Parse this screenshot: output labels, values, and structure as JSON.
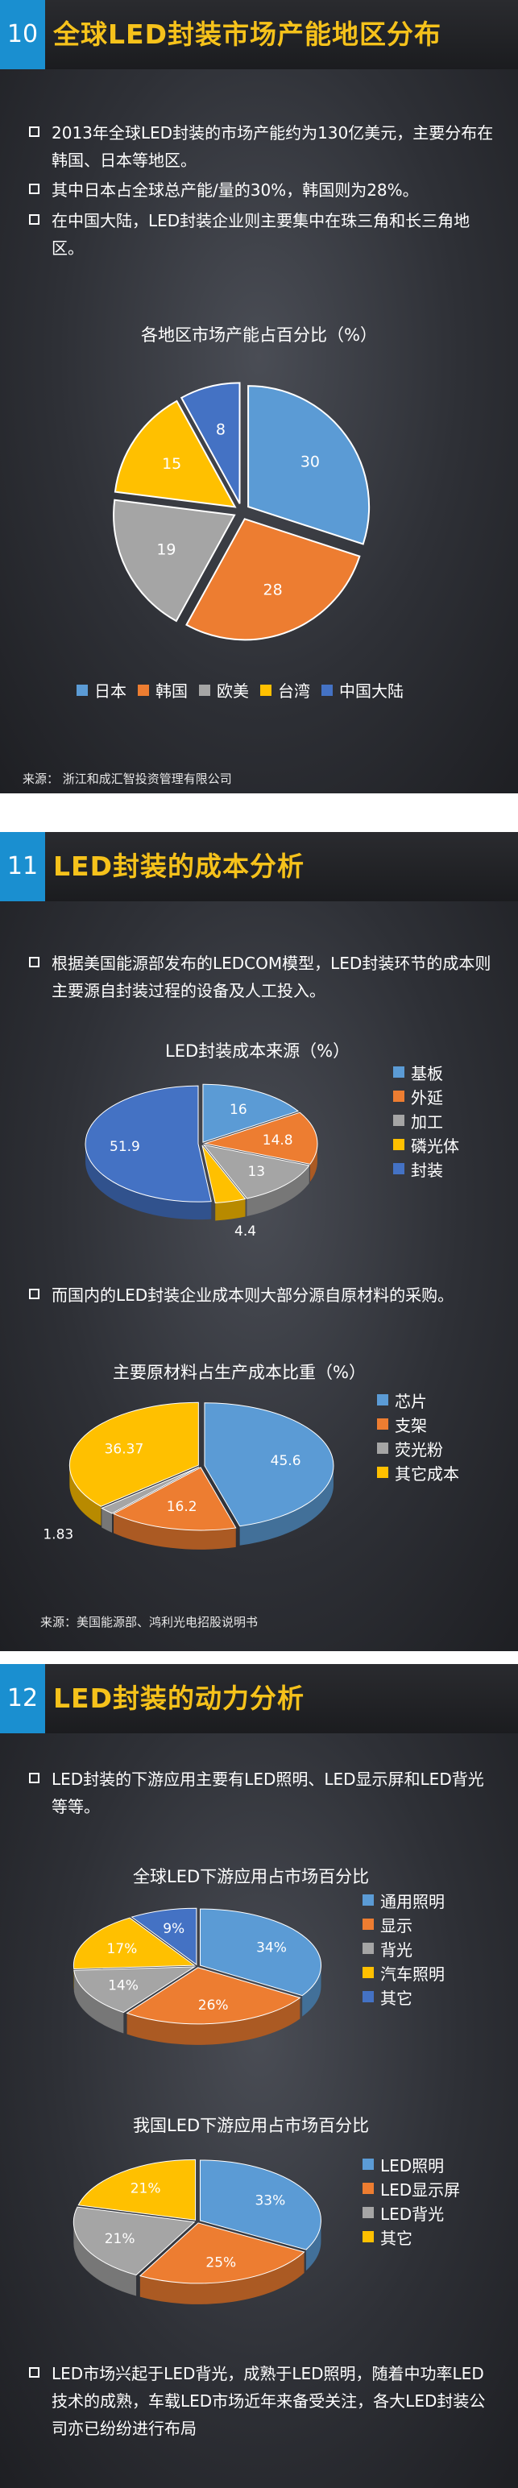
{
  "section10": {
    "number": "10",
    "title": "全球LED封装市场产能地区分布",
    "bullets": [
      "2013年全球LED封装的市场产能约为130亿美元，主要分布在韩国、日本等地区。",
      "其中日本占全球总产能/量的30%，韩国则为28%。",
      "在中国大陆，LED封装企业则主要集中在珠三角和长三角地区。"
    ],
    "source": "来源：  浙江和成汇智投资管理有限公司"
  },
  "section11": {
    "number": "11",
    "title": "LED封装的成本分析",
    "bullets": [
      "根据美国能源部发布的LEDCOM模型，LED封装环节的成本则主要源自封装过程的设备及人工投入。"
    ],
    "bullets2": [
      "而国内的LED封装企业成本则大部分源自原材料的采购。"
    ],
    "source": "来源：美国能源部、鸿利光电招股说明书"
  },
  "section12": {
    "number": "12",
    "title": "LED封装的动力分析",
    "bullets": [
      "LED封装的下游应用主要有LED照明、LED显示屏和LED背光等等。"
    ],
    "bullets2": [
      "LED市场兴起于LED背光，成熟于LED照明，随着中功率LED技术的成熟，车载LED市场近年来备受关注，各大LED封装公司亦已纷纷进行布局"
    ]
  },
  "chart_data": [
    {
      "type": "pie",
      "title": "各地区市场产能占百分比（%）",
      "categories": [
        "日本",
        "韩国",
        "欧美",
        "台湾",
        "中国大陆"
      ],
      "values": [
        30,
        28,
        19,
        15,
        8
      ],
      "colors": [
        "#5b9bd5",
        "#ed7d31",
        "#a5a5a5",
        "#ffc000",
        "#4472c4"
      ],
      "legend": "bottom"
    },
    {
      "type": "pie",
      "title": "LED封装成本来源（%）",
      "categories": [
        "基板",
        "外延",
        "加工",
        "磷光体",
        "封装"
      ],
      "values": [
        16,
        14.8,
        13,
        4.4,
        51.9
      ],
      "colors": [
        "#5b9bd5",
        "#ed7d31",
        "#a5a5a5",
        "#ffc000",
        "#4472c4"
      ],
      "legend": "right"
    },
    {
      "type": "pie",
      "title": "主要原材料占生产成本比重（%）",
      "categories": [
        "芯片",
        "支架",
        "荧光粉",
        "其它成本"
      ],
      "values": [
        45.6,
        16.2,
        1.83,
        36.37
      ],
      "colors": [
        "#5b9bd5",
        "#ed7d31",
        "#a5a5a5",
        "#ffc000"
      ],
      "legend": "right"
    },
    {
      "type": "pie",
      "title": "全球LED下游应用占市场百分比",
      "categories": [
        "通用照明",
        "显示",
        "背光",
        "汽车照明",
        "其它"
      ],
      "values": [
        34,
        26,
        14,
        17,
        9
      ],
      "labels": [
        "34%",
        "26%",
        "14%",
        "17%",
        "9%"
      ],
      "colors": [
        "#5b9bd5",
        "#ed7d31",
        "#a5a5a5",
        "#ffc000",
        "#4472c4"
      ],
      "legend": "right"
    },
    {
      "type": "pie",
      "title": "我国LED下游应用占市场百分比",
      "categories": [
        "LED照明",
        "LED显示屏",
        "LED背光",
        "其它"
      ],
      "values": [
        33,
        25,
        21,
        21
      ],
      "labels": [
        "33%",
        "25%",
        "21%",
        "21%"
      ],
      "colors": [
        "#5b9bd5",
        "#ed7d31",
        "#a5a5a5",
        "#ffc000"
      ],
      "legend": "right"
    }
  ]
}
